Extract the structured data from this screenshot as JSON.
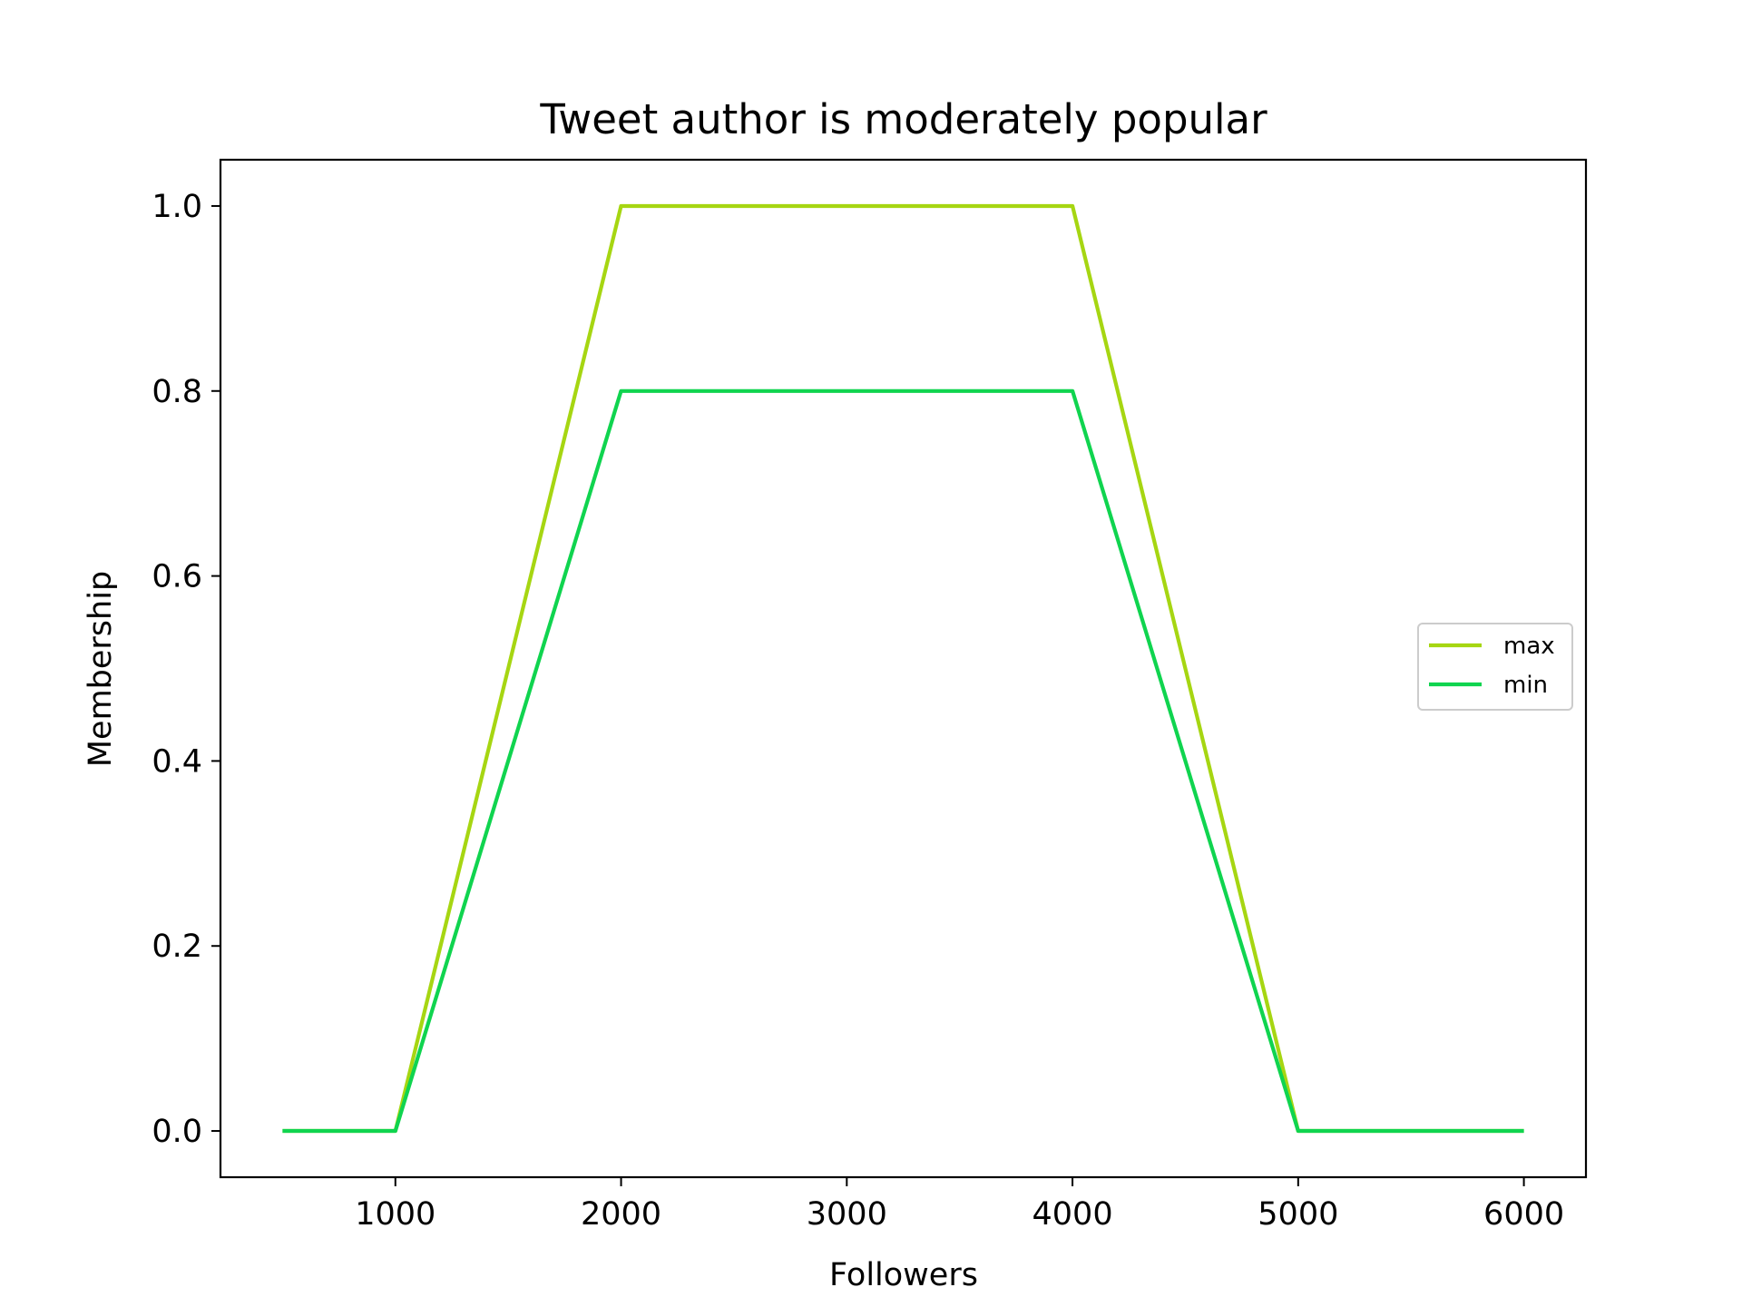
{
  "chart_data": {
    "type": "line",
    "title": "Tweet author is moderately popular",
    "xlabel": "Followers",
    "ylabel": "Membership",
    "xlim": [
      225,
      6275
    ],
    "ylim": [
      -0.05,
      1.05
    ],
    "xticks": [
      1000,
      2000,
      3000,
      4000,
      5000,
      6000
    ],
    "xtick_labels": [
      "1000",
      "2000",
      "3000",
      "4000",
      "5000",
      "6000"
    ],
    "yticks": [
      0.0,
      0.2,
      0.4,
      0.6,
      0.8,
      1.0
    ],
    "ytick_labels": [
      "0.0",
      "0.2",
      "0.4",
      "0.6",
      "0.8",
      "1.0"
    ],
    "grid": false,
    "legend_position": "center-right",
    "series": [
      {
        "name": "max",
        "color": "#a6d612",
        "x": [
          500,
          1000,
          2000,
          4000,
          5000,
          6000
        ],
        "y": [
          0.0,
          0.0,
          1.0,
          1.0,
          0.0,
          0.0
        ]
      },
      {
        "name": "min",
        "color": "#10d44f",
        "x": [
          500,
          1000,
          2000,
          4000,
          5000,
          6000
        ],
        "y": [
          0.0,
          0.0,
          0.8,
          0.8,
          0.0,
          0.0
        ]
      }
    ]
  }
}
